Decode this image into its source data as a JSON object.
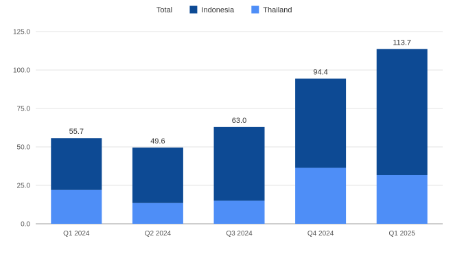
{
  "chart_data": {
    "type": "bar",
    "stacked": true,
    "categories": [
      "Q1 2024",
      "Q2 2024",
      "Q3 2024",
      "Q4 2024",
      "Q1 2025"
    ],
    "series": [
      {
        "name": "Thailand",
        "values": [
          22.0,
          13.5,
          15.0,
          36.4,
          31.7
        ],
        "color": "#4e8ef7"
      },
      {
        "name": "Indonesia",
        "values": [
          33.7,
          36.1,
          48.0,
          58.0,
          82.0
        ],
        "color": "#0d4a94"
      }
    ],
    "totals": {
      "name": "Total",
      "values": [
        55.7,
        49.6,
        63.0,
        94.4,
        113.7
      ],
      "labels": [
        "55.7",
        "49.6",
        "63.0",
        "94.4",
        "113.7"
      ]
    },
    "legend": [
      {
        "name": "Total",
        "color": ""
      },
      {
        "name": "Indonesia",
        "color": "#0d4a94"
      },
      {
        "name": "Thailand",
        "color": "#4e8ef7"
      }
    ],
    "legend_position": "top-center",
    "ylim": [
      0,
      125
    ],
    "yticks": [
      0,
      25,
      50,
      75,
      100,
      125
    ],
    "ytick_labels": [
      "0.0",
      "25.0",
      "50.0",
      "75.0",
      "100.0",
      "125.0"
    ],
    "grid": true,
    "title": "",
    "xlabel": "",
    "ylabel": ""
  }
}
